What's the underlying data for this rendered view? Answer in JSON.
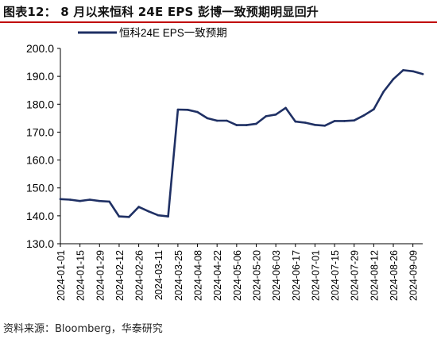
{
  "header": {
    "title": "图表12：  8 月以来恒科 24E EPS 彭博一致预期明显回升"
  },
  "footer": {
    "source": "资料来源：Bloomberg，华泰研究"
  },
  "colors": {
    "series": "#1f3064",
    "axis": "#000000",
    "title_rule": "#c00000"
  },
  "chart_data": {
    "type": "line",
    "title": "",
    "xlabel": "",
    "ylabel": "",
    "ylim": [
      130.0,
      200.0
    ],
    "yticks": [
      "200.0",
      "190.0",
      "180.0",
      "170.0",
      "160.0",
      "150.0",
      "140.0",
      "130.0"
    ],
    "xticks": [
      "2024-01-01",
      "2024-01-15",
      "2024-01-29",
      "2024-02-12",
      "2024-02-26",
      "2024-03-11",
      "2024-03-25",
      "2024-04-08",
      "2024-04-22",
      "2024-05-06",
      "2024-05-20",
      "2024-06-03",
      "2024-06-17",
      "2024-07-01",
      "2024-07-15",
      "2024-07-29",
      "2024-08-12",
      "2024-08-26",
      "2024-09-09"
    ],
    "grid": false,
    "legend_position": "top-left",
    "series": [
      {
        "name": "恒科24E EPS一致预期",
        "x": [
          "2024-01-01",
          "2024-01-08",
          "2024-01-15",
          "2024-01-22",
          "2024-01-29",
          "2024-02-05",
          "2024-02-12",
          "2024-02-19",
          "2024-02-26",
          "2024-03-04",
          "2024-03-11",
          "2024-03-18",
          "2024-03-25",
          "2024-04-01",
          "2024-04-08",
          "2024-04-15",
          "2024-04-22",
          "2024-04-29",
          "2024-05-06",
          "2024-05-13",
          "2024-05-20",
          "2024-05-27",
          "2024-06-03",
          "2024-06-10",
          "2024-06-17",
          "2024-06-24",
          "2024-07-01",
          "2024-07-08",
          "2024-07-15",
          "2024-07-22",
          "2024-07-29",
          "2024-08-05",
          "2024-08-12",
          "2024-08-19",
          "2024-08-26",
          "2024-09-02",
          "2024-09-09",
          "2024-09-16"
        ],
        "values": [
          146.0,
          145.8,
          145.3,
          145.8,
          145.3,
          145.1,
          139.8,
          139.6,
          143.2,
          141.6,
          140.2,
          139.8,
          178.1,
          178.0,
          177.2,
          175.0,
          174.1,
          174.1,
          172.5,
          172.5,
          173.0,
          175.7,
          176.3,
          178.7,
          173.8,
          173.4,
          172.6,
          172.3,
          174.0,
          174.0,
          174.2,
          176.0,
          178.2,
          184.5,
          189.0,
          192.2,
          191.8,
          190.8
        ]
      }
    ]
  }
}
